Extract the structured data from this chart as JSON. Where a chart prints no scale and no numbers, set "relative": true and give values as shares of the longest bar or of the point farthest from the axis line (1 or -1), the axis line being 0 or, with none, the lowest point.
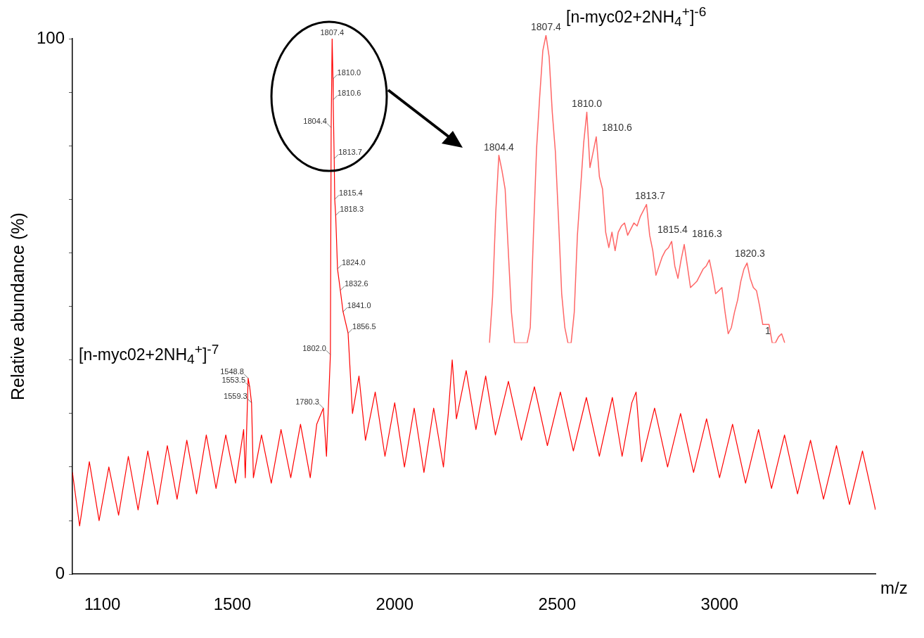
{
  "chart_data": [
    {
      "type": "line",
      "xlabel": "m/z",
      "ylabel": "Relative abundance (%)",
      "xlim": [
        1008,
        3480
      ],
      "xticks": [
        1100,
        1500,
        2000,
        2500,
        3000
      ],
      "ylim": [
        0,
        100
      ],
      "yticks": [
        0,
        {
          "value": 10,
          "label": null
        },
        {
          "value": 20,
          "label": null
        },
        {
          "value": 30,
          "label": null
        },
        {
          "value": 40,
          "label": null
        },
        {
          "value": 50,
          "label": null
        },
        {
          "value": 60,
          "label": null
        },
        {
          "value": 70,
          "label": null
        },
        {
          "value": 80,
          "label": null
        },
        {
          "value": 90,
          "label": null
        },
        100
      ],
      "grid": false,
      "legend": false,
      "marker": "none",
      "annotations": [
        "[n-myc02+2NH$_{4}$$^{+}$]$^{-7}$",
        {
          "text": "1548.8",
          "x": 1548.8,
          "y": 36.6
        },
        {
          "text": "1553.5",
          "x": 1553.5,
          "y": 35
        },
        {
          "text": "1559.3",
          "x": 1559.3,
          "y": 32
        },
        {
          "text": "1780.3",
          "x": 1780.3,
          "y": 31
        },
        {
          "text": "1802.0",
          "x": 1802.0,
          "y": 41
        },
        {
          "text": "1804.4",
          "x": 1804.4,
          "y": 83.4
        },
        {
          "text": "1807.4",
          "x": 1807.4,
          "y": 100
        },
        {
          "text": "1810.0",
          "x": 1810.0,
          "y": 92.5
        },
        {
          "text": "1810.6",
          "x": 1810.6,
          "y": 88.6
        },
        {
          "text": "1813.7",
          "x": 1813.7,
          "y": 77.6
        },
        {
          "text": "1815.4",
          "x": 1815.4,
          "y": 70
        },
        {
          "text": "1818.3",
          "x": 1818.3,
          "y": 67
        },
        {
          "text": "1824.0",
          "x": 1824.0,
          "y": 57
        },
        {
          "text": "1832.6",
          "x": 1832.6,
          "y": 53
        },
        {
          "text": "1841.0",
          "x": 1841.0,
          "y": 49
        },
        {
          "text": "1856.5",
          "x": 1856.5,
          "y": 45
        }
      ],
      "x": [
        1008,
        1030,
        1060,
        1090,
        1120,
        1150,
        1180,
        1210,
        1240,
        1270,
        1300,
        1330,
        1360,
        1390,
        1420,
        1450,
        1480,
        1510,
        1535,
        1540,
        1548.8,
        1553.5,
        1559.3,
        1565,
        1590,
        1620,
        1650,
        1680,
        1710,
        1740,
        1760,
        1780.3,
        1790,
        1802.0,
        1804.4,
        1807.4,
        1810.0,
        1810.6,
        1813.7,
        1815.4,
        1818.3,
        1824.0,
        1832.6,
        1841.0,
        1856.5,
        1870,
        1890,
        1910,
        1940,
        1970,
        2000,
        2030,
        2060,
        2090,
        2120,
        2150,
        2165,
        2177,
        2190,
        2220,
        2250,
        2280,
        2310,
        2350,
        2390,
        2430,
        2470,
        2510,
        2550,
        2590,
        2630,
        2670,
        2700,
        2730,
        2743,
        2760,
        2800,
        2840,
        2880,
        2920,
        2960,
        3000,
        3040,
        3080,
        3120,
        3160,
        3200,
        3240,
        3280,
        3320,
        3360,
        3400,
        3440,
        3480
      ],
      "series": [
        {
          "color": "#ff0000",
          "values": [
            19,
            9,
            21,
            10,
            20,
            11,
            22,
            12,
            23,
            13,
            24,
            14,
            25,
            15,
            26,
            16,
            26,
            17,
            27,
            18,
            36.6,
            35,
            32,
            18,
            26,
            17,
            27,
            18,
            28,
            18,
            28,
            31,
            22,
            41,
            83.4,
            100,
            92.5,
            88.6,
            77.6,
            70,
            67,
            57,
            53,
            49,
            45,
            30,
            37,
            25,
            34,
            22,
            32,
            20,
            31,
            19,
            31,
            20,
            30,
            40,
            29,
            38,
            27,
            37,
            26,
            36,
            25,
            35,
            24,
            34,
            23,
            33,
            22,
            33,
            22,
            32,
            34,
            21,
            31,
            20,
            30,
            19,
            29,
            18,
            28,
            17,
            27,
            16,
            26,
            15,
            25,
            14,
            24,
            13,
            23,
            12
          ]
        }
      ]
    },
    {
      "type": "line",
      "relative": true,
      "grid": false,
      "legend": false,
      "marker": "none",
      "annotations": [
        "[n-myc02+2NH$_{4}$$^{+}$]$^{-6}$",
        "1",
        {
          "text": "1804.4",
          "y": 0.61
        },
        {
          "text": "1807.4",
          "y": 1
        },
        {
          "text": "1810.0",
          "y": 0.75
        },
        "1810.6",
        "1813.7",
        "1815.4",
        "1816.3",
        "1820.3"
      ],
      "categories": [
        null,
        null,
        null,
        null,
        null,
        null,
        null,
        null,
        null,
        null,
        null,
        null,
        null,
        null,
        null,
        null,
        null,
        null,
        null,
        null,
        null,
        null,
        null,
        null,
        null,
        null,
        null,
        null,
        null,
        null,
        null,
        null,
        null,
        null,
        null,
        null,
        null,
        null,
        null,
        null,
        null,
        null,
        null,
        null,
        null,
        null,
        null,
        null,
        null,
        null,
        null,
        null,
        null,
        null,
        null,
        null,
        null,
        null,
        null,
        null,
        null,
        null,
        null,
        null,
        null,
        null,
        null,
        null,
        null,
        null,
        null,
        null,
        null,
        null,
        null,
        null,
        null,
        null,
        null,
        null,
        null,
        null,
        null,
        null,
        null,
        null,
        null,
        null,
        null,
        null,
        null,
        null,
        null,
        null,
        null
      ],
      "series": [
        {
          "color": "#ff6666",
          "values": [
            0,
            0.15,
            0.42,
            0.61,
            0.56,
            0.5,
            0.3,
            0.1,
            0,
            0,
            0,
            0,
            0,
            0.05,
            0.35,
            0.63,
            0.8,
            0.95,
            1,
            0.93,
            0.75,
            0.62,
            0.4,
            0.16,
            0.05,
            0,
            0,
            0.1,
            0.35,
            0.5,
            0.65,
            0.75,
            0.57,
            0.62,
            0.67,
            0.54,
            0.5,
            0.36,
            0.31,
            0.36,
            0.3,
            0.36,
            0.38,
            0.39,
            0.35,
            0.37,
            0.39,
            0.38,
            0.41,
            0.43,
            0.45,
            0.35,
            0.3,
            0.22,
            0.25,
            0.28,
            0.3,
            0.31,
            0.33,
            0.25,
            0.21,
            0.27,
            0.32,
            0.25,
            0.18,
            0.19,
            0.2,
            0.22,
            0.24,
            0.25,
            0.27,
            0.22,
            0.16,
            0.17,
            0.18,
            0.1,
            0.03,
            0.05,
            0.1,
            0.14,
            0.2,
            0.24,
            0.26,
            0.21,
            0.18,
            0.17,
            0.12,
            0.06,
            0.06,
            0.06,
            0,
            0,
            0.02,
            0.03,
            0
          ]
        }
      ]
    }
  ]
}
